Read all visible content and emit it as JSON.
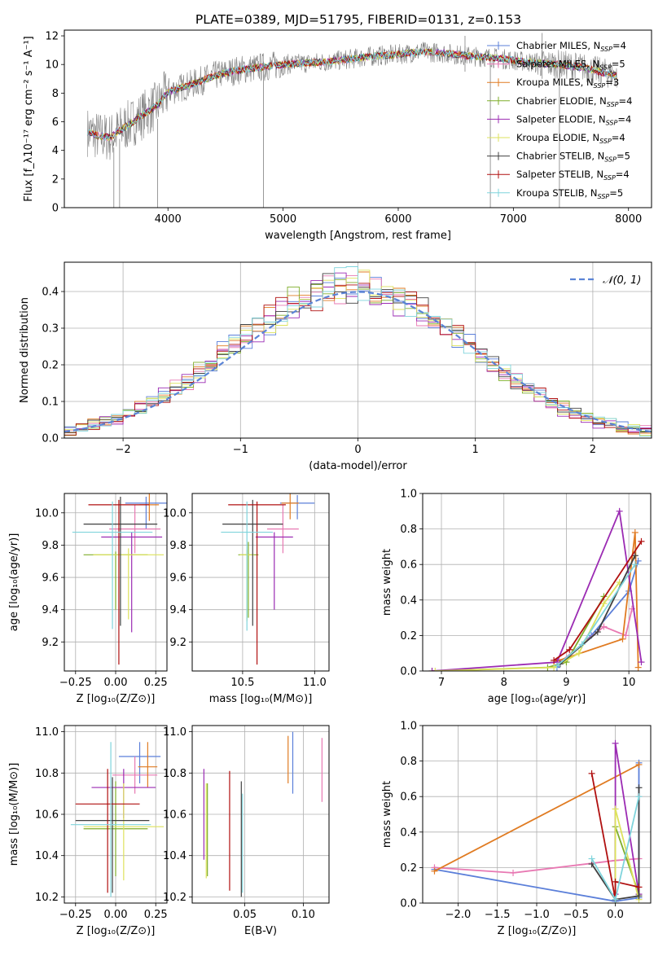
{
  "title": "PLATE=0389, MJD=51795, FIBERID=0131, z=0.153",
  "colors": {
    "Chabrier MILES": "#5b7fd9",
    "Salpeter MILES": "#e879b3",
    "Kroupa MILES": "#e07b22",
    "Chabrier ELODIE": "#7fae2a",
    "Salpeter ELODIE": "#9b2bb3",
    "Kroupa ELODIE": "#dde25c",
    "Chabrier STELIB": "#404040",
    "Salpeter STELIB": "#b01010",
    "Kroupa STELIB": "#7fd4dc",
    "data": "#808080",
    "normal": "#5b84d6"
  },
  "chart_data": [
    {
      "type": "line",
      "panel": "spectrum",
      "xlabel": "wavelength [Angstrom, rest frame]",
      "ylabel": "Flux [f_λ10⁻¹⁷ erg cm⁻² s⁻¹ A⁻¹]",
      "xlim": [
        3100,
        8200
      ],
      "ylim": [
        0,
        12.4
      ],
      "xticks": [
        4000,
        5000,
        6000,
        7000,
        8000
      ],
      "yticks": [
        0,
        2,
        4,
        6,
        8,
        10,
        12
      ],
      "legend_position": "right",
      "legend": [
        {
          "label": "Chabrier MILES, N",
          "sub": "SSP",
          "post": "=4"
        },
        {
          "label": "Salpeter MILES, N",
          "sub": "SSP",
          "post": "=5"
        },
        {
          "label": "Kroupa MILES, N",
          "sub": "SSP",
          "post": "=3"
        },
        {
          "label": "Chabrier ELODIE, N",
          "sub": "SSP",
          "post": "=4"
        },
        {
          "label": "Salpeter ELODIE, N",
          "sub": "SSP",
          "post": "=4"
        },
        {
          "label": "Kroupa ELODIE, N",
          "sub": "SSP",
          "post": "=4"
        },
        {
          "label": "Chabrier STELIB, N",
          "sub": "SSP",
          "post": "=5"
        },
        {
          "label": "Salpeter STELIB, N",
          "sub": "SSP",
          "post": "=4"
        },
        {
          "label": "Kroupa STELIB, N",
          "sub": "SSP",
          "post": "=5"
        }
      ],
      "continuum_x": [
        3300,
        3400,
        3500,
        3600,
        3700,
        3800,
        3900,
        4000,
        4200,
        4400,
        4600,
        4800,
        5000,
        5200,
        5400,
        5600,
        5800,
        6000,
        6200,
        6400,
        6600,
        6800,
        7000,
        7200,
        7400,
        7600,
        7800,
        7900
      ],
      "continuum_y": [
        5.3,
        5.0,
        4.9,
        5.5,
        6.0,
        6.6,
        7.1,
        8.1,
        8.6,
        9.2,
        9.6,
        9.8,
        10.0,
        10.1,
        10.2,
        10.4,
        10.6,
        10.7,
        10.9,
        10.8,
        10.6,
        10.5,
        10.3,
        10.1,
        10.0,
        9.8,
        9.4,
        9.2
      ],
      "spikes": [
        {
          "x": 3530,
          "y0": 0,
          "y1": 4.2
        },
        {
          "x": 3580,
          "y0": 0,
          "y1": 4.8
        },
        {
          "x": 3910,
          "y0": 0,
          "y1": 6.2
        },
        {
          "x": 4830,
          "y0": 0,
          "y1": 10.2
        },
        {
          "x": 6800,
          "y0": 0,
          "y1": 10.4
        },
        {
          "x": 7400,
          "y0": 0,
          "y1": 10.1
        },
        {
          "x": 7250,
          "y0": 9.0,
          "y1": 12.2
        },
        {
          "x": 6580,
          "y0": 9.5,
          "y1": 12.0
        }
      ]
    },
    {
      "type": "histogram",
      "panel": "residuals",
      "xlabel": "(data-model)/error",
      "ylabel": "Normed distribution",
      "xlim": [
        -2.5,
        2.5
      ],
      "ylim": [
        0,
        0.48
      ],
      "xticks": [
        -2,
        -1,
        0,
        1,
        2
      ],
      "yticks": [
        0.0,
        0.1,
        0.2,
        0.3,
        0.4
      ],
      "bin_width": 0.1,
      "bin_start": -2.5,
      "legend_position": "top-right",
      "normal_label": "𝒩(0, 1)"
    },
    {
      "type": "scatter",
      "panel": "age_vs_Z",
      "xlabel": "Z [log₁₀(Z/Z⊙)]",
      "ylabel": "age  [log₁₀(age/yr)]",
      "xlim": [
        -0.32,
        0.32
      ],
      "ylim": [
        9.02,
        10.12
      ],
      "xticks": [
        -0.25,
        0.0,
        0.25
      ],
      "yticks": [
        9.2,
        9.4,
        9.6,
        9.8,
        10.0
      ],
      "points": [
        {
          "m": "Chabrier MILES",
          "x": 0.19,
          "y": 10.06,
          "xe": 0.13,
          "yl": 9.9,
          "yh": 10.1
        },
        {
          "m": "Salpeter MILES",
          "x": 0.12,
          "y": 9.9,
          "xe": 0.16,
          "yl": 9.75,
          "yh": 10.05
        },
        {
          "m": "Kroupa MILES",
          "x": 0.21,
          "y": 10.05,
          "xe": 0.06,
          "yl": 9.95,
          "yh": 10.12
        },
        {
          "m": "Chabrier ELODIE",
          "x": 0.0,
          "y": 9.74,
          "xe": 0.2,
          "yl": 9.4,
          "yh": 9.76
        },
        {
          "m": "Salpeter ELODIE",
          "x": 0.1,
          "y": 9.85,
          "xe": 0.19,
          "yl": 9.26,
          "yh": 9.88
        },
        {
          "m": "Kroupa ELODIE",
          "x": 0.08,
          "y": 9.74,
          "xe": 0.22,
          "yl": 9.34,
          "yh": 9.78
        },
        {
          "m": "Chabrier STELIB",
          "x": 0.03,
          "y": 9.93,
          "xe": 0.23,
          "yl": 9.3,
          "yh": 10.1
        },
        {
          "m": "Salpeter STELIB",
          "x": 0.02,
          "y": 10.05,
          "xe": 0.19,
          "yl": 9.06,
          "yh": 10.08
        },
        {
          "m": "Kroupa STELIB",
          "x": -0.02,
          "y": 9.88,
          "xe": 0.25,
          "yl": 9.28,
          "yh": 10.07
        }
      ]
    },
    {
      "type": "scatter",
      "panel": "age_vs_mass",
      "xlabel": "mass [log₁₀(M/M⊙)]",
      "ylabel": "",
      "xlim": [
        10.15,
        11.1
      ],
      "ylim": [
        9.02,
        10.12
      ],
      "xticks": [
        10.5,
        11.0
      ],
      "yticks": [
        9.2,
        9.4,
        9.6,
        9.8,
        10.0
      ],
      "points": [
        {
          "m": "Chabrier MILES",
          "x": 10.88,
          "y": 10.06,
          "xe": 0.12,
          "yl": 9.96,
          "yh": 10.11
        },
        {
          "m": "Salpeter MILES",
          "x": 10.78,
          "y": 9.9,
          "xe": 0.11,
          "yl": 9.75,
          "yh": 10.05
        },
        {
          "m": "Kroupa MILES",
          "x": 10.83,
          "y": 10.06,
          "xe": 0.06,
          "yl": 9.96,
          "yh": 10.12
        },
        {
          "m": "Chabrier ELODIE",
          "x": 10.54,
          "y": 9.74,
          "xe": 0.07,
          "yl": 9.35,
          "yh": 9.82
        },
        {
          "m": "Salpeter ELODIE",
          "x": 10.72,
          "y": 9.85,
          "xe": 0.13,
          "yl": 9.4,
          "yh": 9.88
        },
        {
          "m": "Kroupa ELODIE",
          "x": 10.53,
          "y": 9.74,
          "xe": 0.05,
          "yl": 9.33,
          "yh": 9.77
        },
        {
          "m": "Chabrier STELIB",
          "x": 10.57,
          "y": 9.93,
          "xe": 0.21,
          "yl": 9.3,
          "yh": 10.08
        },
        {
          "m": "Salpeter STELIB",
          "x": 10.6,
          "y": 10.05,
          "xe": 0.2,
          "yl": 9.06,
          "yh": 10.07
        },
        {
          "m": "Kroupa STELIB",
          "x": 10.53,
          "y": 9.88,
          "xe": 0.18,
          "yl": 9.27,
          "yh": 10.07
        }
      ]
    },
    {
      "type": "line",
      "panel": "weight_vs_age",
      "xlabel": "age  [log₁₀(age/yr)]",
      "ylabel": "mass weight",
      "xlim": [
        6.7,
        10.35
      ],
      "ylim": [
        0,
        1
      ],
      "xticks": [
        7,
        8,
        9,
        10
      ],
      "yticks": [
        0.0,
        0.2,
        0.4,
        0.6,
        0.8,
        1.0
      ],
      "series": [
        {
          "name": "Chabrier MILES",
          "x": [
            8.85,
            9.4,
            10.0,
            10.15
          ],
          "y": [
            0.02,
            0.2,
            0.45,
            0.62
          ]
        },
        {
          "name": "Salpeter MILES",
          "x": [
            8.9,
            9.6,
            9.95,
            10.05
          ],
          "y": [
            0.05,
            0.25,
            0.2,
            0.35
          ]
        },
        {
          "name": "Kroupa MILES",
          "x": [
            8.8,
            9.9,
            10.1,
            10.15
          ],
          "y": [
            0.05,
            0.18,
            0.78,
            0.02
          ]
        },
        {
          "name": "Chabrier ELODIE",
          "x": [
            6.85,
            8.7,
            9.0,
            9.6
          ],
          "y": [
            0.0,
            0.02,
            0.05,
            0.42
          ]
        },
        {
          "name": "Salpeter ELODIE",
          "x": [
            6.85,
            8.85,
            9.85,
            10.2
          ],
          "y": [
            0.0,
            0.05,
            0.9,
            0.05
          ]
        },
        {
          "name": "Kroupa ELODIE",
          "x": [
            6.9,
            8.8,
            9.2,
            9.6,
            9.85
          ],
          "y": [
            0.0,
            0.02,
            0.1,
            0.38,
            0.5
          ]
        },
        {
          "name": "Chabrier STELIB",
          "x": [
            8.9,
            9.5,
            10.1
          ],
          "y": [
            0.04,
            0.22,
            0.65
          ]
        },
        {
          "name": "Salpeter STELIB",
          "x": [
            8.8,
            9.05,
            10.2
          ],
          "y": [
            0.06,
            0.12,
            0.73
          ]
        },
        {
          "name": "Kroupa STELIB",
          "x": [
            8.85,
            9.25,
            10.1
          ],
          "y": [
            0.03,
            0.15,
            0.6
          ]
        }
      ]
    },
    {
      "type": "scatter",
      "panel": "mass_vs_Z",
      "xlabel": "Z [log₁₀(Z/Z⊙)]",
      "ylabel": "mass [log₁₀(M/M⊙)]",
      "xlim": [
        -0.32,
        0.32
      ],
      "ylim": [
        10.17,
        11.03
      ],
      "xticks": [
        -0.25,
        0.0,
        0.25
      ],
      "yticks": [
        10.2,
        10.4,
        10.6,
        10.8,
        11.0
      ],
      "points": [
        {
          "m": "Chabrier MILES",
          "x": 0.15,
          "y": 10.88,
          "xe": 0.13,
          "yl": 10.75,
          "yh": 10.95
        },
        {
          "m": "Salpeter MILES",
          "x": 0.12,
          "y": 10.79,
          "xe": 0.14,
          "yl": 10.7,
          "yh": 10.88
        },
        {
          "m": "Kroupa MILES",
          "x": 0.2,
          "y": 10.83,
          "xe": 0.06,
          "yl": 10.73,
          "yh": 10.95
        },
        {
          "m": "Chabrier ELODIE",
          "x": 0.0,
          "y": 10.53,
          "xe": 0.2,
          "yl": 10.3,
          "yh": 10.76
        },
        {
          "m": "Salpeter ELODIE",
          "x": 0.05,
          "y": 10.73,
          "xe": 0.2,
          "yl": 10.58,
          "yh": 10.82
        },
        {
          "m": "Kroupa ELODIE",
          "x": 0.05,
          "y": 10.54,
          "xe": 0.25,
          "yl": 10.28,
          "yh": 10.75
        },
        {
          "m": "Chabrier STELIB",
          "x": -0.02,
          "y": 10.57,
          "xe": 0.23,
          "yl": 10.22,
          "yh": 10.78
        },
        {
          "m": "Salpeter STELIB",
          "x": -0.05,
          "y": 10.65,
          "xe": 0.2,
          "yl": 10.22,
          "yh": 10.82
        },
        {
          "m": "Kroupa STELIB",
          "x": -0.03,
          "y": 10.55,
          "xe": 0.25,
          "yl": 10.2,
          "yh": 10.95
        }
      ]
    },
    {
      "type": "scatter",
      "panel": "mass_vs_EBV",
      "xlabel": "E(B-V)",
      "ylabel": "",
      "xlim": [
        0.005,
        0.122
      ],
      "ylim": [
        10.17,
        11.03
      ],
      "xticks": [
        0.05,
        0.1
      ],
      "yticks": [
        10.2,
        10.4,
        10.6,
        10.8,
        11.0
      ],
      "points": [
        {
          "m": "Chabrier MILES",
          "x": 0.091,
          "y": 10.88,
          "xe": 0.0,
          "yl": 10.7,
          "yh": 11.0
        },
        {
          "m": "Salpeter MILES",
          "x": 0.116,
          "y": 10.82,
          "xe": 0.0,
          "yl": 10.66,
          "yh": 10.97
        },
        {
          "m": "Kroupa MILES",
          "x": 0.087,
          "y": 10.88,
          "xe": 0.0,
          "yl": 10.75,
          "yh": 10.98
        },
        {
          "m": "Chabrier ELODIE",
          "x": 0.018,
          "y": 10.55,
          "xe": 0.0,
          "yl": 10.3,
          "yh": 10.75
        },
        {
          "m": "Salpeter ELODIE",
          "x": 0.015,
          "y": 10.6,
          "xe": 0.0,
          "yl": 10.38,
          "yh": 10.82
        },
        {
          "m": "Kroupa ELODIE",
          "x": 0.017,
          "y": 10.5,
          "xe": 0.0,
          "yl": 10.29,
          "yh": 10.75
        },
        {
          "m": "Chabrier STELIB",
          "x": 0.047,
          "y": 10.55,
          "xe": 0.0,
          "yl": 10.2,
          "yh": 10.76
        },
        {
          "m": "Salpeter STELIB",
          "x": 0.037,
          "y": 10.55,
          "xe": 0.0,
          "yl": 10.23,
          "yh": 10.81
        },
        {
          "m": "Kroupa STELIB",
          "x": 0.048,
          "y": 10.45,
          "xe": 0.0,
          "yl": 10.22,
          "yh": 10.7
        }
      ]
    },
    {
      "type": "line",
      "panel": "weight_vs_Z",
      "xlabel": "Z [log₁₀(Z/Z⊙)]",
      "ylabel": "mass weight",
      "xlim": [
        -2.45,
        0.45
      ],
      "ylim": [
        0,
        1
      ],
      "xticks": [
        -2.0,
        -1.5,
        -1.0,
        -0.5,
        0.0
      ],
      "yticks": [
        0.0,
        0.2,
        0.4,
        0.6,
        0.8,
        1.0
      ],
      "series": [
        {
          "name": "Chabrier MILES",
          "x": [
            -2.3,
            0.0,
            0.3,
            0.3
          ],
          "y": [
            0.19,
            0.01,
            0.03,
            0.79
          ]
        },
        {
          "name": "Salpeter MILES",
          "x": [
            -2.3,
            -1.3,
            0.0,
            0.3
          ],
          "y": [
            0.2,
            0.17,
            0.24,
            0.25
          ]
        },
        {
          "name": "Kroupa MILES",
          "x": [
            -2.3,
            0.3
          ],
          "y": [
            0.18,
            0.78
          ]
        },
        {
          "name": "Chabrier ELODIE",
          "x": [
            0.0,
            0.0,
            0.3
          ],
          "y": [
            0.02,
            0.43,
            0.05
          ]
        },
        {
          "name": "Salpeter ELODIE",
          "x": [
            0.0,
            0.0,
            0.3
          ],
          "y": [
            0.05,
            0.9,
            0.05
          ]
        },
        {
          "name": "Kroupa ELODIE",
          "x": [
            0.0,
            0.0,
            0.3
          ],
          "y": [
            0.02,
            0.53,
            0.02
          ]
        },
        {
          "name": "Chabrier STELIB",
          "x": [
            -0.3,
            0.0,
            0.3,
            0.3
          ],
          "y": [
            0.22,
            0.02,
            0.04,
            0.65
          ]
        },
        {
          "name": "Salpeter STELIB",
          "x": [
            -0.3,
            0.0,
            0.0,
            0.3
          ],
          "y": [
            0.73,
            0.02,
            0.12,
            0.09
          ]
        },
        {
          "name": "Kroupa STELIB",
          "x": [
            -0.3,
            0.0,
            0.3
          ],
          "y": [
            0.25,
            0.02,
            0.6
          ]
        }
      ]
    }
  ]
}
